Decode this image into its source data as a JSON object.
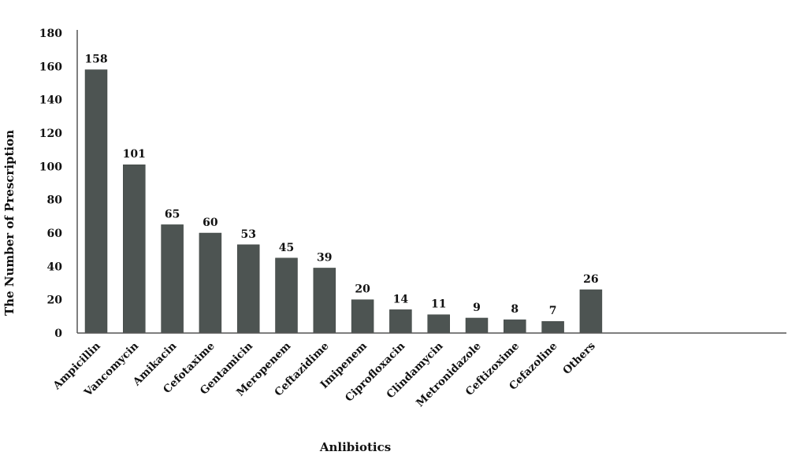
{
  "chart_data": {
    "type": "bar",
    "title": "",
    "xlabel": "Anlibiotics",
    "ylabel": "The Number of Prescription",
    "ylim": [
      0,
      180
    ],
    "yticks": [
      0,
      20,
      40,
      60,
      80,
      100,
      120,
      140,
      160,
      180
    ],
    "grid": false,
    "bar_color": "#4d5452",
    "categories": [
      "Ampicillin",
      "Vancomycin",
      "Amikacin",
      "Cefotaxime",
      "Gentamicin",
      "Meropenem",
      "Ceftazidime",
      "Imipenem",
      "Ciprofloxacin",
      "Clindamycin",
      "Metronidazole",
      "Ceftizoxime",
      "Cefazoline",
      "Others"
    ],
    "values": [
      158,
      101,
      65,
      60,
      53,
      45,
      39,
      20,
      14,
      11,
      9,
      8,
      7,
      26
    ],
    "value_labels": [
      "158",
      "101",
      "65",
      "60",
      "53",
      "45",
      "39",
      "20",
      "14",
      "11",
      "9",
      "8",
      "7",
      "26"
    ]
  }
}
